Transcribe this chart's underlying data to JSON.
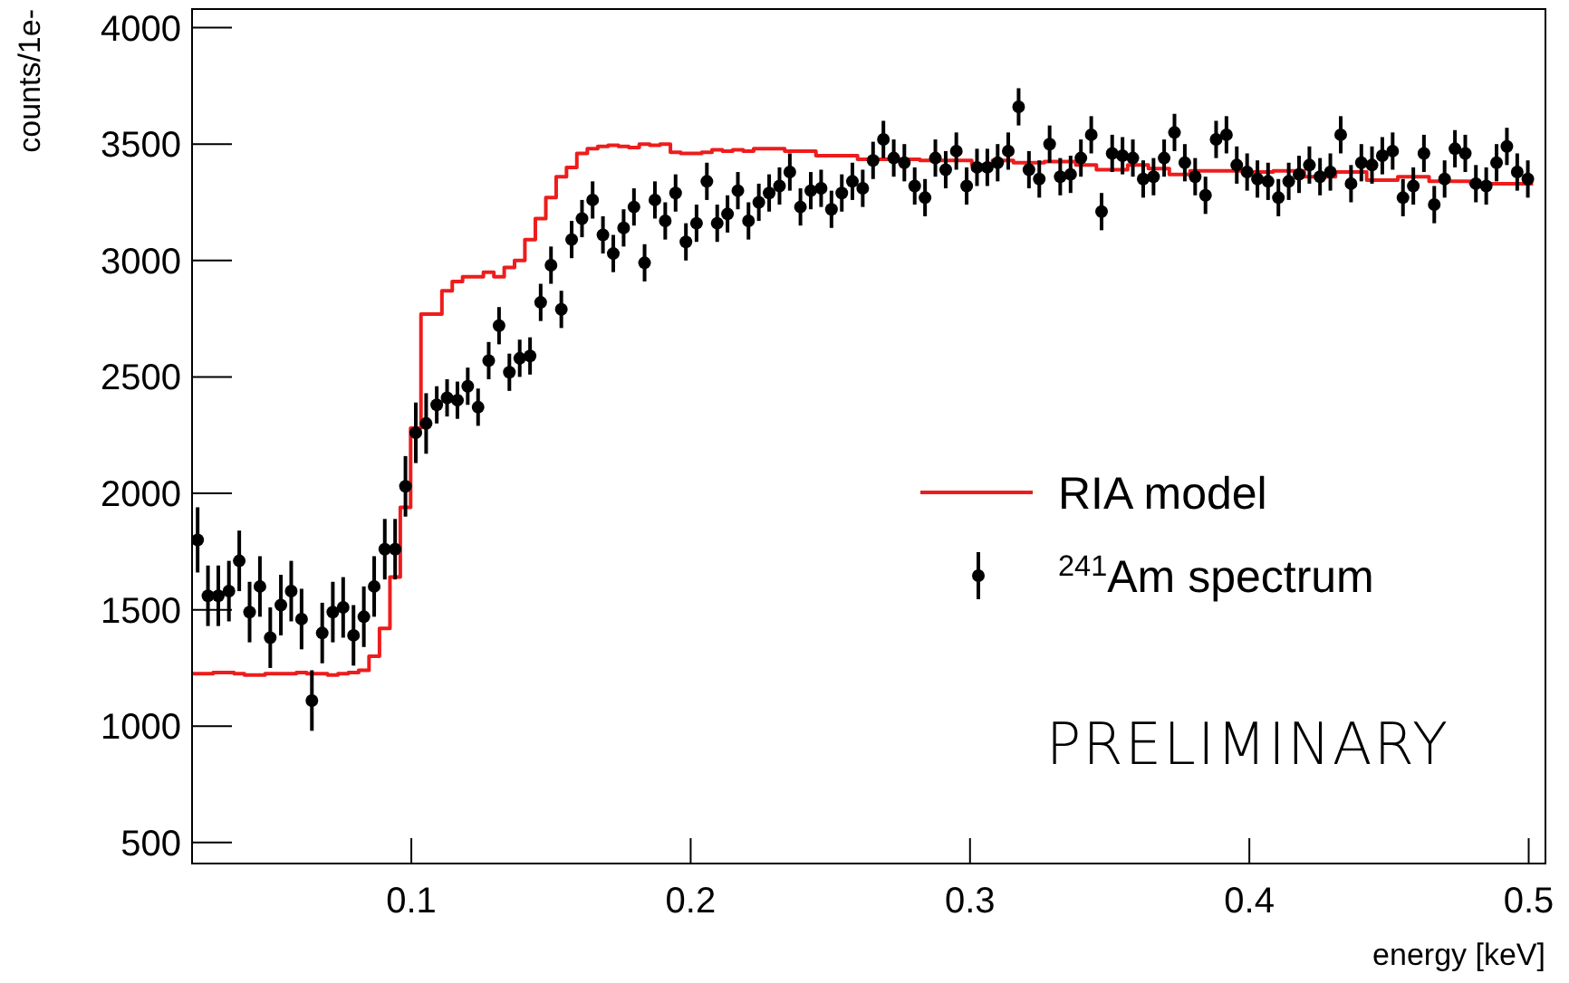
{
  "chart_data": {
    "type": "scatter",
    "xlabel": "energy [keV]",
    "ylabel": "counts/1e-",
    "xlim": [
      0.0215,
      0.506
    ],
    "ylim": [
      410,
      4080
    ],
    "xticks": [
      0.1,
      0.2,
      0.3,
      0.4,
      0.5
    ],
    "yticks": [
      500,
      1000,
      1500,
      2000,
      2500,
      3000,
      3500,
      4000
    ],
    "grid": false,
    "legend": "right",
    "annotations": [
      "PRELIMINARY"
    ],
    "series": [
      {
        "type": "step",
        "name": "RIA model",
        "color": "#ee1c1c",
        "line_style": "solid",
        "x": [
          0.0235,
          0.0272,
          0.0309,
          0.0347,
          0.0384,
          0.0421,
          0.0458,
          0.0495,
          0.0533,
          0.057,
          0.0607,
          0.0644,
          0.0681,
          0.0719,
          0.0756,
          0.0793,
          0.083,
          0.0867,
          0.0905,
          0.0942,
          0.0979,
          0.1016,
          0.1053,
          0.1091,
          0.1128,
          0.1165,
          0.1202,
          0.1239,
          0.1277,
          0.1314,
          0.1351,
          0.1388,
          0.1425,
          0.1463,
          0.15,
          0.1537,
          0.1574,
          0.1611,
          0.1649,
          0.1686,
          0.1723,
          0.176,
          0.1797,
          0.1835,
          0.1872,
          0.1909,
          0.1946,
          0.1983,
          0.2021,
          0.2058,
          0.2095,
          0.2132,
          0.2169,
          0.2207,
          0.2244,
          0.2281,
          0.2318,
          0.2355,
          0.2393,
          0.243,
          0.2467,
          0.2504,
          0.2541,
          0.2579,
          0.2616,
          0.2653,
          0.269,
          0.2727,
          0.2765,
          0.2802,
          0.2839,
          0.2876,
          0.2913,
          0.2951,
          0.2988,
          0.3025,
          0.3062,
          0.3099,
          0.3137,
          0.3174,
          0.3211,
          0.3248,
          0.3285,
          0.3323,
          0.336,
          0.3397,
          0.3434,
          0.3471,
          0.3509,
          0.3546,
          0.3583,
          0.362,
          0.3657,
          0.3695,
          0.3732,
          0.3769,
          0.3806,
          0.3843,
          0.3881,
          0.3918,
          0.3955,
          0.3992,
          0.4029,
          0.4067,
          0.4104,
          0.4141,
          0.4178,
          0.4215,
          0.4253,
          0.429,
          0.4327,
          0.4364,
          0.4401,
          0.4439,
          0.4476,
          0.4513,
          0.455,
          0.4587,
          0.4625,
          0.4662,
          0.4699,
          0.4736,
          0.4773,
          0.4811,
          0.4848,
          0.4885,
          0.4922,
          0.4959,
          0.4997
        ],
        "values": [
          1225,
          1225,
          1230,
          1230,
          1225,
          1220,
          1220,
          1225,
          1225,
          1225,
          1230,
          1225,
          1225,
          1220,
          1225,
          1230,
          1240,
          1300,
          1420,
          1640,
          1940,
          2280,
          2770,
          2770,
          2870,
          2910,
          2930,
          2930,
          2950,
          2930,
          2970,
          3000,
          3090,
          3180,
          3270,
          3360,
          3400,
          3460,
          3480,
          3490,
          3495,
          3490,
          3485,
          3500,
          3495,
          3500,
          3465,
          3460,
          3460,
          3465,
          3475,
          3470,
          3475,
          3470,
          3480,
          3480,
          3480,
          3470,
          3470,
          3470,
          3450,
          3450,
          3450,
          3450,
          3435,
          3435,
          3435,
          3435,
          3435,
          3435,
          3430,
          3430,
          3430,
          3430,
          3430,
          3410,
          3410,
          3430,
          3430,
          3420,
          3420,
          3420,
          3425,
          3425,
          3425,
          3410,
          3410,
          3390,
          3390,
          3390,
          3410,
          3410,
          3395,
          3395,
          3370,
          3370,
          3385,
          3385,
          3385,
          3385,
          3385,
          3380,
          3380,
          3380,
          3385,
          3385,
          3385,
          3360,
          3360,
          3360,
          3380,
          3380,
          3380,
          3345,
          3345,
          3345,
          3360,
          3360,
          3360,
          3340,
          3340,
          3340,
          3340,
          3330,
          3330,
          3330,
          3330,
          3330,
          3330
        ]
      },
      {
        "name": "$^{241}$Am spectrum",
        "color": "#000000",
        "marker": "circle",
        "x": [
          0.0235,
          0.0272,
          0.0309,
          0.0347,
          0.0384,
          0.0421,
          0.0458,
          0.0495,
          0.0533,
          0.057,
          0.0607,
          0.0644,
          0.0681,
          0.0719,
          0.0756,
          0.0793,
          0.083,
          0.0867,
          0.0905,
          0.0942,
          0.0979,
          0.1016,
          0.1053,
          0.1091,
          0.1128,
          0.1165,
          0.1202,
          0.1239,
          0.1277,
          0.1314,
          0.1351,
          0.1388,
          0.1425,
          0.1463,
          0.15,
          0.1537,
          0.1574,
          0.1611,
          0.1649,
          0.1686,
          0.1723,
          0.176,
          0.1797,
          0.1835,
          0.1872,
          0.1909,
          0.1946,
          0.1983,
          0.2021,
          0.2058,
          0.2095,
          0.2132,
          0.2169,
          0.2207,
          0.2244,
          0.2281,
          0.2318,
          0.2355,
          0.2393,
          0.243,
          0.2467,
          0.2504,
          0.2541,
          0.2579,
          0.2616,
          0.2653,
          0.269,
          0.2727,
          0.2765,
          0.2802,
          0.2839,
          0.2876,
          0.2913,
          0.2951,
          0.2988,
          0.3025,
          0.3062,
          0.3099,
          0.3137,
          0.3174,
          0.3211,
          0.3248,
          0.3285,
          0.3323,
          0.336,
          0.3397,
          0.3434,
          0.3471,
          0.3509,
          0.3546,
          0.3583,
          0.362,
          0.3657,
          0.3695,
          0.3732,
          0.3769,
          0.3806,
          0.3843,
          0.3881,
          0.3918,
          0.3955,
          0.3992,
          0.4029,
          0.4067,
          0.4104,
          0.4141,
          0.4178,
          0.4215,
          0.4253,
          0.429,
          0.4327,
          0.4364,
          0.4401,
          0.4439,
          0.4476,
          0.4513,
          0.455,
          0.4587,
          0.4625,
          0.4662,
          0.4699,
          0.4736,
          0.4773,
          0.4811,
          0.4848,
          0.4885,
          0.4922,
          0.4959,
          0.4997
        ],
        "values": [
          1800,
          1560,
          1560,
          1580,
          1710,
          1490,
          1600,
          1380,
          1520,
          1580,
          1460,
          1110,
          1400,
          1490,
          1510,
          1390,
          1470,
          1600,
          1760,
          1760,
          2030,
          2260,
          2300,
          2380,
          2410,
          2400,
          2460,
          2370,
          2570,
          2720,
          2520,
          2580,
          2590,
          2820,
          2980,
          2790,
          3090,
          3180,
          3260,
          3110,
          3030,
          3140,
          3230,
          2990,
          3260,
          3170,
          3290,
          3080,
          3160,
          3340,
          3160,
          3200,
          3300,
          3170,
          3250,
          3290,
          3320,
          3380,
          3230,
          3300,
          3310,
          3220,
          3290,
          3340,
          3310,
          3430,
          3520,
          3440,
          3420,
          3320,
          3270,
          3440,
          3390,
          3470,
          3320,
          3400,
          3400,
          3420,
          3470,
          3660,
          3390,
          3350,
          3500,
          3360,
          3370,
          3440,
          3540,
          3210,
          3460,
          3450,
          3440,
          3350,
          3360,
          3440,
          3550,
          3420,
          3360,
          3280,
          3520,
          3540,
          3410,
          3380,
          3350,
          3340,
          3270,
          3340,
          3370,
          3410,
          3360,
          3380,
          3540,
          3330,
          3420,
          3410,
          3450,
          3470,
          3270,
          3320,
          3460,
          3240,
          3350,
          3480,
          3460,
          3330,
          3320,
          3420,
          3490,
          3380,
          3350
        ],
        "errors": [
          140,
          130,
          130,
          130,
          130,
          130,
          130,
          130,
          130,
          130,
          130,
          130,
          130,
          130,
          130,
          130,
          130,
          130,
          130,
          130,
          130,
          130,
          130,
          80,
          80,
          80,
          80,
          80,
          80,
          80,
          80,
          80,
          80,
          80,
          80,
          80,
          80,
          80,
          80,
          80,
          80,
          80,
          80,
          80,
          80,
          80,
          80,
          80,
          80,
          80,
          80,
          80,
          80,
          80,
          80,
          80,
          80,
          80,
          80,
          80,
          80,
          80,
          80,
          80,
          80,
          80,
          80,
          80,
          80,
          80,
          80,
          80,
          80,
          80,
          80,
          80,
          80,
          80,
          80,
          80,
          80,
          80,
          80,
          80,
          80,
          80,
          80,
          80,
          80,
          80,
          80,
          80,
          80,
          80,
          80,
          80,
          80,
          80,
          80,
          80,
          80,
          80,
          80,
          80,
          80,
          80,
          80,
          80,
          80,
          80,
          80,
          80,
          80,
          80,
          80,
          80,
          80,
          80,
          80,
          80,
          80,
          80,
          80,
          80,
          80,
          80,
          80,
          80,
          80
        ]
      }
    ]
  }
}
